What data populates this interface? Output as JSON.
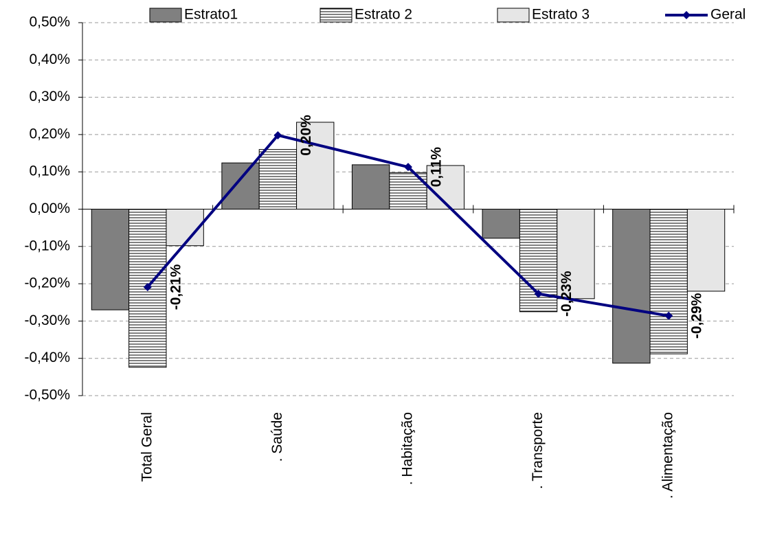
{
  "chart_data": {
    "type": "bar",
    "categories": [
      "Total Geral",
      ". Saúde",
      ". Habitação",
      ". Transporte",
      ". Alimentação"
    ],
    "series": [
      {
        "name": "Estrato1",
        "type": "bar",
        "color": "#808080",
        "values": [
          -0.27,
          0.124,
          0.119,
          -0.078,
          -0.413
        ]
      },
      {
        "name": "Estrato 2",
        "type": "bar",
        "color": "#ffffff",
        "pattern": "horizontal-lines",
        "values": [
          -0.424,
          0.16,
          0.098,
          -0.275,
          -0.388
        ]
      },
      {
        "name": "Estrato 3",
        "type": "bar",
        "color": "#e6e6e6",
        "values": [
          -0.098,
          0.233,
          0.117,
          -0.24,
          -0.22
        ]
      },
      {
        "name": "Geral",
        "type": "line",
        "color": "#000080",
        "values": [
          -0.209,
          0.198,
          0.113,
          -0.227,
          -0.286
        ],
        "value_labels": [
          "-0,21%",
          "0,20%",
          "0,11%",
          "-0,23%",
          "-0,29%"
        ]
      }
    ],
    "ylim": [
      -0.5,
      0.5
    ],
    "yticks": [
      {
        "value": -0.5,
        "label": "-0,50%"
      },
      {
        "value": -0.4,
        "label": "-0,40%"
      },
      {
        "value": -0.3,
        "label": "-0,30%"
      },
      {
        "value": -0.2,
        "label": "-0,20%"
      },
      {
        "value": -0.1,
        "label": "-0,10%"
      },
      {
        "value": 0,
        "label": "0,00%"
      },
      {
        "value": 0.1,
        "label": "0,10%"
      },
      {
        "value": 0.2,
        "label": "0,20%"
      },
      {
        "value": 0.3,
        "label": "0,30%"
      },
      {
        "value": 0.4,
        "label": "0,40%"
      },
      {
        "value": 0.5,
        "label": "0,50%"
      }
    ],
    "grid": true,
    "legend": "top"
  }
}
